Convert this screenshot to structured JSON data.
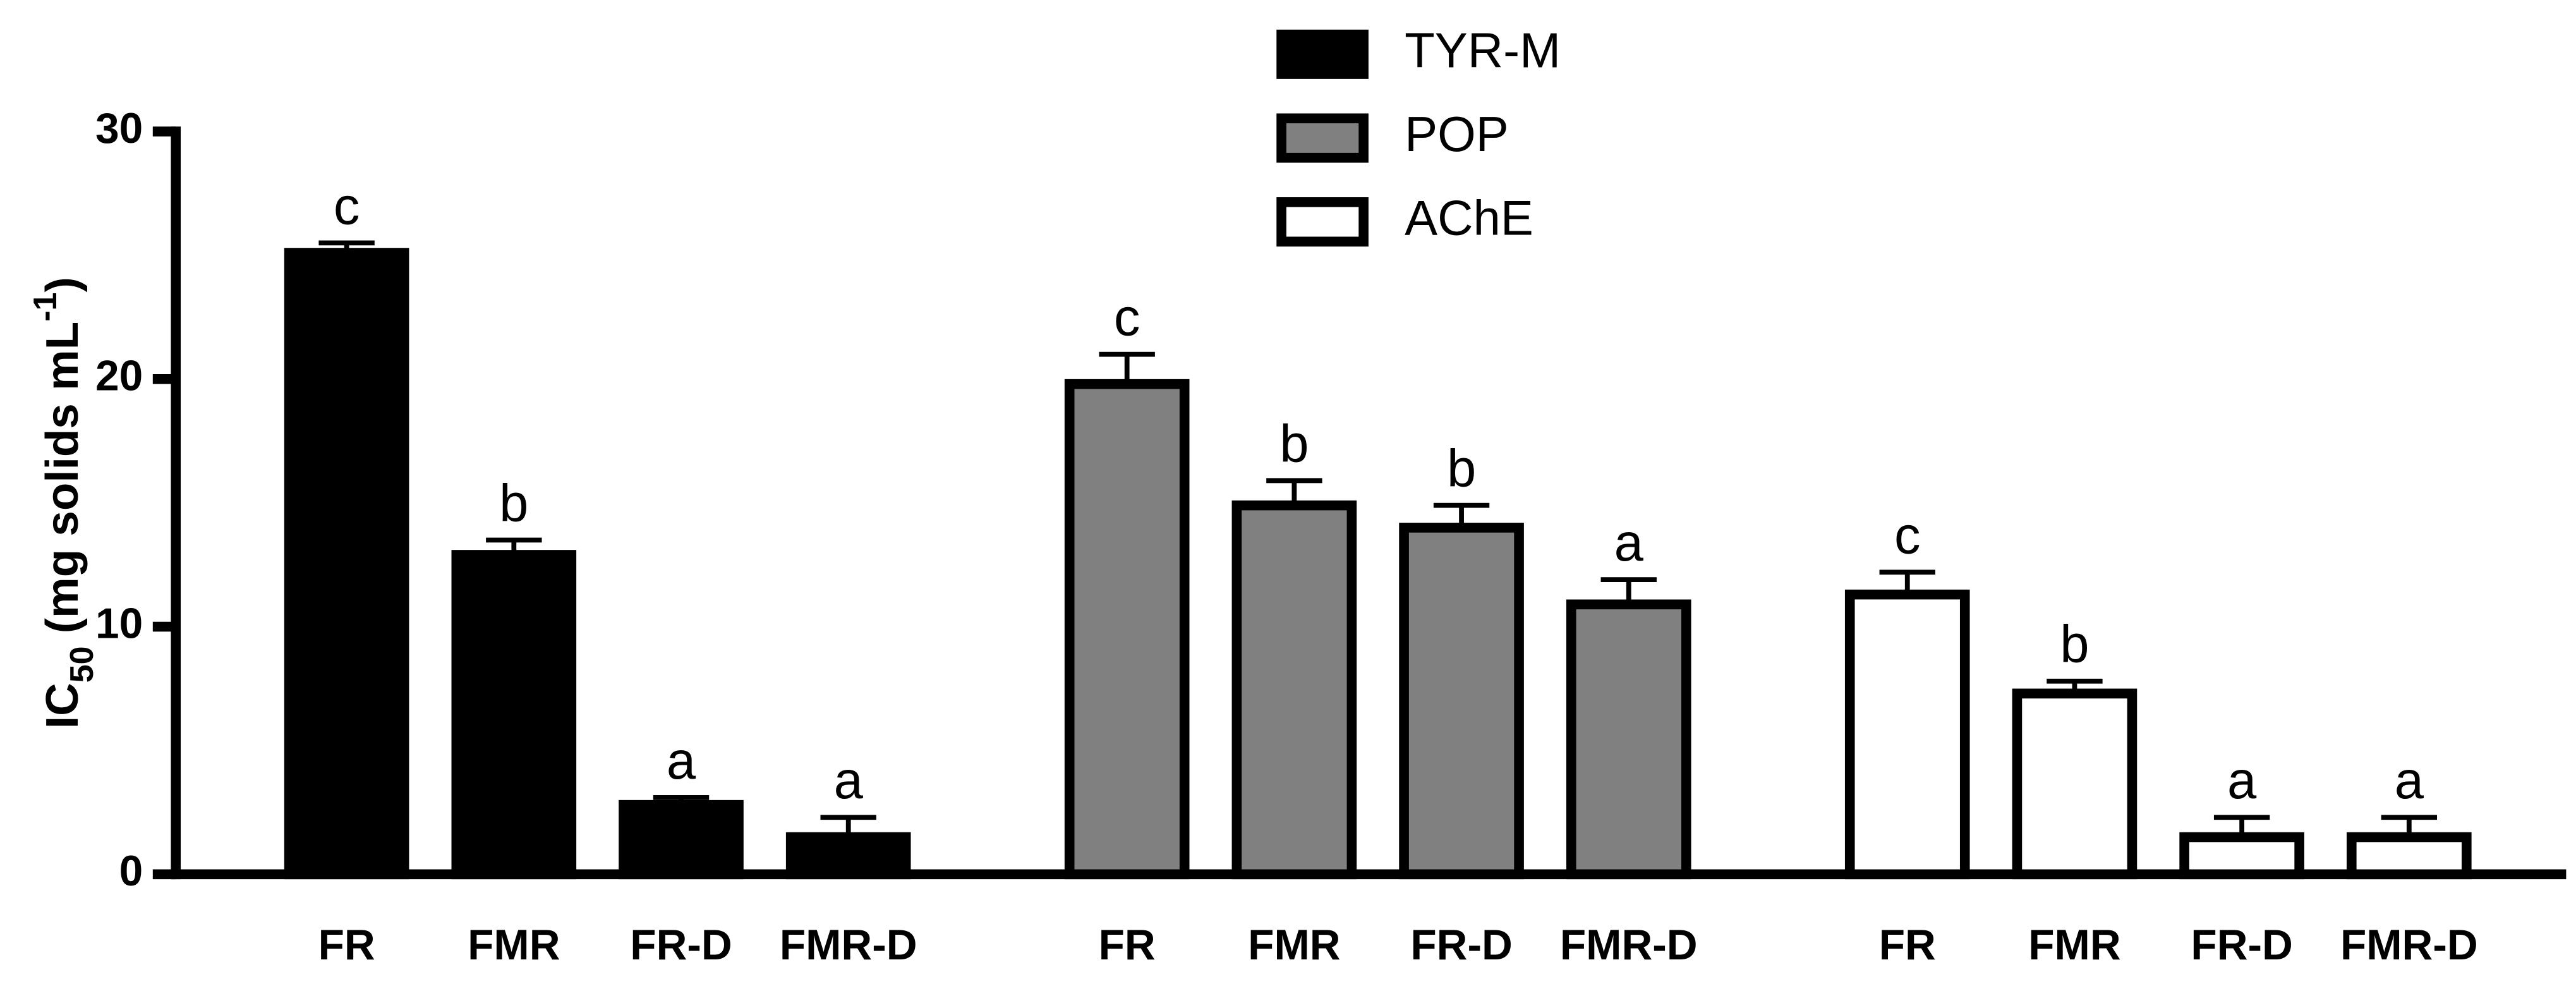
{
  "chart_data": {
    "type": "bar",
    "ylabel": {
      "main": "IC",
      "sub": "50",
      "rest": " (mg solids mL",
      "sup": "-1",
      "end": ")"
    },
    "categories": [
      "FR",
      "FMR",
      "FR-D",
      "FMR-D"
    ],
    "edgecolor": "#000000",
    "series": [
      {
        "name": "TYR-M",
        "color": "#000000",
        "values": [
          25.1,
          12.9,
          2.8,
          1.5
        ],
        "errors": [
          0.4,
          0.6,
          0.3,
          0.8
        ],
        "labels": [
          "c",
          "b",
          "a",
          "a"
        ]
      },
      {
        "name": "POP",
        "color": "#808080",
        "values": [
          19.8,
          14.9,
          14.0,
          10.9
        ],
        "errors": [
          1.2,
          1.0,
          0.9,
          1.0
        ],
        "labels": [
          "c",
          "b",
          "b",
          "a"
        ]
      },
      {
        "name": "AChE",
        "color": "#ffffff",
        "values": [
          11.3,
          7.3,
          1.5,
          1.5
        ],
        "errors": [
          0.9,
          0.5,
          0.8,
          0.8
        ],
        "labels": [
          "c",
          "b",
          "a",
          "a"
        ]
      }
    ],
    "ylim": [
      0,
      30
    ],
    "yticks": [
      0,
      10,
      20,
      30
    ],
    "grid": false
  }
}
